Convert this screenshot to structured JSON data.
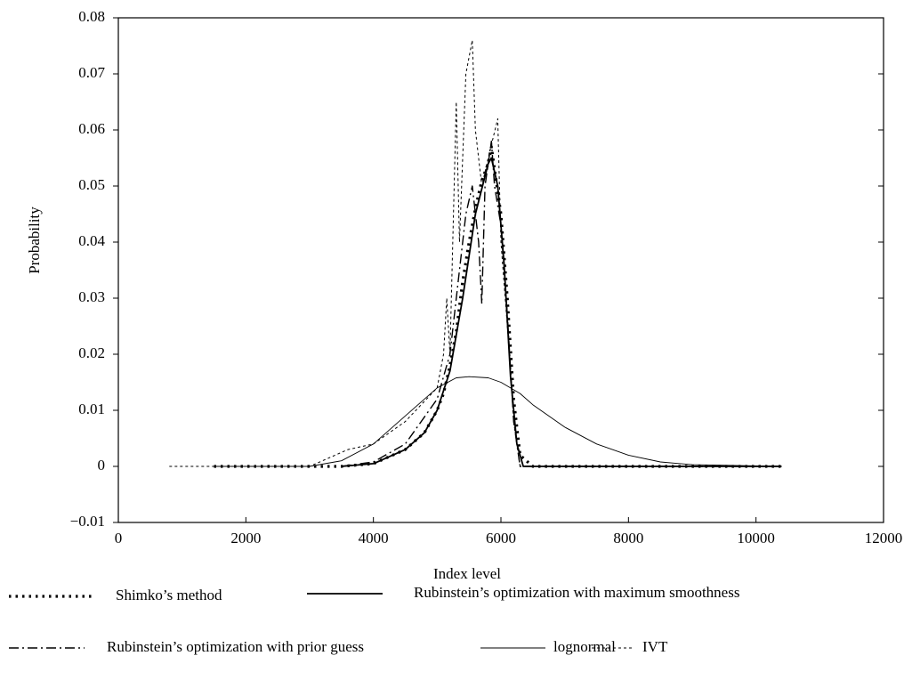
{
  "chart_data": {
    "type": "line",
    "x_label": "Index level",
    "y_label": "Probability",
    "xlim": [
      0,
      12000
    ],
    "xticks": [
      0,
      2000,
      4000,
      6000,
      8000,
      10000,
      12000
    ],
    "ylim": [
      -0.01,
      0.08
    ],
    "yticks": [
      {
        "value": -0.01,
        "label": "−0.01"
      },
      0,
      0.01,
      0.02,
      0.03,
      0.04,
      0.05,
      0.06,
      0.07,
      0.08
    ],
    "grid": false,
    "series": [
      {
        "name": "Shimko’s method",
        "color": "#000000",
        "style": "dotted-thick",
        "x": [
          1500,
          3500,
          4000,
          4500,
          4800,
          5000,
          5100,
          5200,
          5300,
          5400,
          5500,
          5600,
          5700,
          5800,
          5850,
          5900,
          6000,
          6100,
          6200,
          6300,
          6500,
          8000,
          10400
        ],
        "values": [
          0,
          0,
          0.0005,
          0.003,
          0.006,
          0.01,
          0.013,
          0.018,
          0.024,
          0.033,
          0.04,
          0.046,
          0.051,
          0.054,
          0.057,
          0.053,
          0.045,
          0.03,
          0.012,
          0.002,
          0,
          0,
          0
        ]
      },
      {
        "name": "Rubinstein’s optimization with maximum smoothness",
        "color": "#000000",
        "style": "solid",
        "x": [
          3500,
          4000,
          4500,
          4800,
          5000,
          5200,
          5400,
          5600,
          5800,
          5850,
          5950,
          6050,
          6150,
          6250,
          6350,
          8000,
          10400
        ],
        "values": [
          0,
          0.0005,
          0.003,
          0.006,
          0.01,
          0.017,
          0.03,
          0.045,
          0.054,
          0.055,
          0.05,
          0.036,
          0.016,
          0.004,
          0,
          0,
          0
        ]
      },
      {
        "name": "Rubinstein’s optimization with prior guess",
        "color": "#000000",
        "style": "dashdot",
        "x": [
          3500,
          4000,
          4500,
          5000,
          5200,
          5350,
          5450,
          5550,
          5650,
          5700,
          5750,
          5850,
          5900,
          6000,
          6100,
          6200,
          6300,
          8000,
          10400
        ],
        "values": [
          0,
          0.0008,
          0.004,
          0.012,
          0.02,
          0.035,
          0.045,
          0.05,
          0.04,
          0.029,
          0.05,
          0.058,
          0.05,
          0.043,
          0.027,
          0.008,
          0,
          0,
          0
        ]
      },
      {
        "name": "lognormal",
        "color": "#000000",
        "style": "thin",
        "x": [
          1500,
          3000,
          3500,
          4000,
          4500,
          5000,
          5300,
          5500,
          5800,
          6000,
          6300,
          6500,
          7000,
          7500,
          8000,
          8500,
          9000,
          10400
        ],
        "values": [
          0,
          0,
          0.001,
          0.004,
          0.009,
          0.014,
          0.0158,
          0.016,
          0.0158,
          0.015,
          0.013,
          0.011,
          0.007,
          0.004,
          0.002,
          0.0008,
          0.0003,
          0
        ]
      },
      {
        "name": "IVT",
        "color": "#000000",
        "style": "dashed",
        "x": [
          800,
          3000,
          3600,
          4000,
          4500,
          5000,
          5100,
          5150,
          5200,
          5300,
          5350,
          5450,
          5550,
          5600,
          5700,
          5800,
          5950,
          6000,
          6100,
          6200,
          6300,
          6500,
          8000,
          10400
        ],
        "values": [
          0,
          0,
          0.003,
          0.004,
          0.008,
          0.014,
          0.02,
          0.03,
          0.02,
          0.065,
          0.04,
          0.07,
          0.076,
          0.06,
          0.05,
          0.055,
          0.062,
          0.04,
          0.025,
          0.008,
          0,
          0,
          0,
          0
        ]
      }
    ]
  }
}
